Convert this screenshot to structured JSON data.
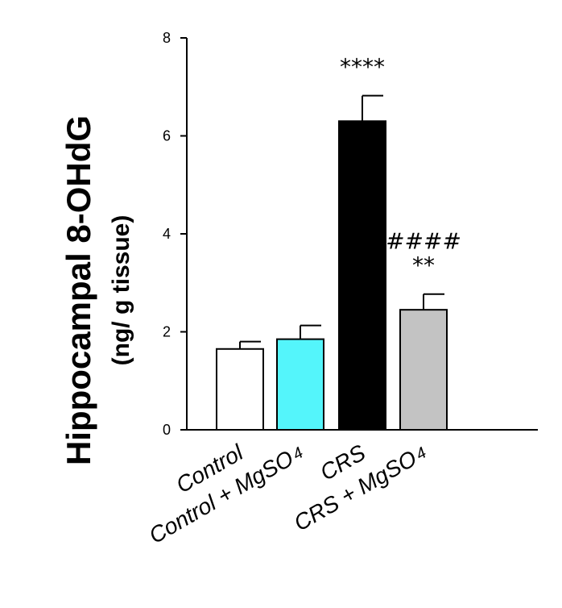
{
  "chart_data": {
    "type": "bar",
    "ylabel": "Hippocampal 8-OHdG",
    "ylabel_units": "(ng/ g tissue)",
    "ylim": [
      0,
      8
    ],
    "yticks": [
      "0",
      "2",
      "4",
      "6",
      "8"
    ],
    "categories": [
      {
        "label": "Control",
        "subscript": ""
      },
      {
        "label": "Control + MgSO",
        "subscript": "4"
      },
      {
        "label": "CRS",
        "subscript": ""
      },
      {
        "label": "CRS + MgSO",
        "subscript": "4"
      }
    ],
    "values": [
      1.65,
      1.85,
      6.3,
      2.45
    ],
    "errors": [
      0.15,
      0.28,
      0.52,
      0.32
    ],
    "colors": [
      "#ffffff",
      "#54f5fb",
      "#000000",
      "#c3c3c3"
    ],
    "annotations": [
      {
        "bar": 2,
        "lines": [
          "****"
        ]
      },
      {
        "bar": 3,
        "lines": [
          "####",
          "**"
        ]
      }
    ]
  }
}
